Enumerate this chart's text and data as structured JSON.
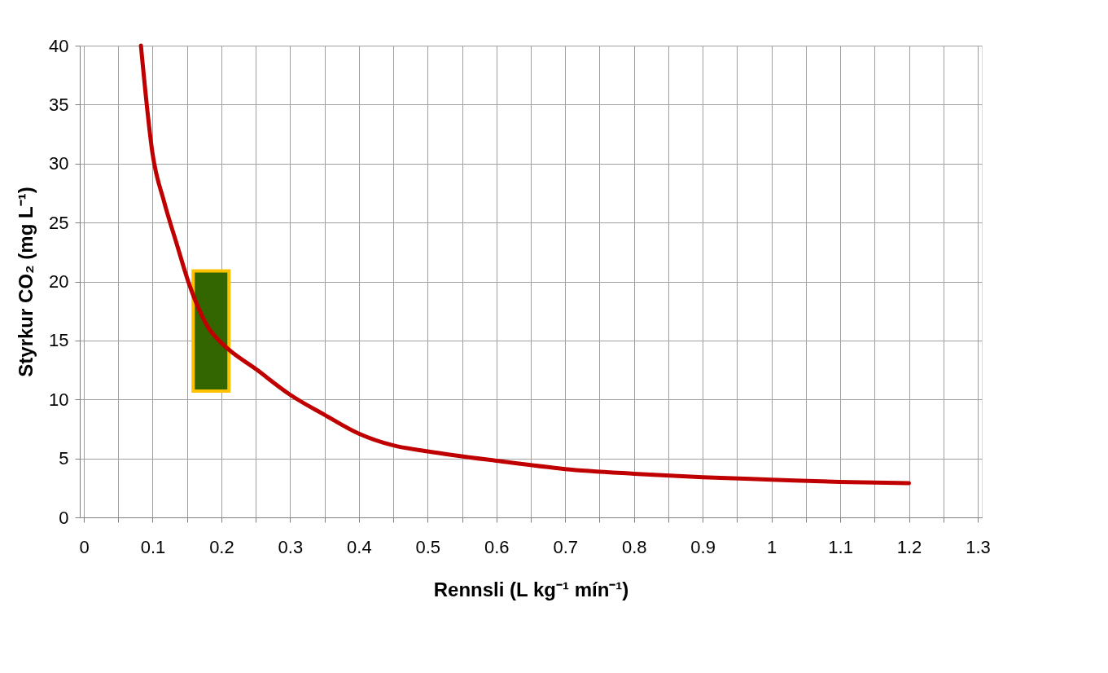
{
  "chart_data": {
    "type": "line",
    "xlabel": "Rennsli (L kg⁻¹ mín⁻¹)",
    "ylabel": "Styrkur CO₂ (mg L⁻¹)",
    "xlim": [
      0,
      1.3
    ],
    "ylim": [
      0,
      40
    ],
    "xticks": [
      0,
      {
        "value": 0.05,
        "label": null
      },
      0.1,
      {
        "value": 0.15,
        "label": null
      },
      0.2,
      {
        "value": 0.25,
        "label": null
      },
      0.3,
      {
        "value": 0.35,
        "label": null
      },
      0.4,
      {
        "value": 0.45,
        "label": null
      },
      0.5,
      {
        "value": 0.55,
        "label": null
      },
      0.6,
      {
        "value": 0.65,
        "label": null
      },
      0.7,
      {
        "value": 0.75,
        "label": null
      },
      0.8,
      {
        "value": 0.85,
        "label": null
      },
      0.9,
      {
        "value": 0.95,
        "label": null
      },
      1,
      {
        "value": 1.05,
        "label": null
      },
      1.1,
      {
        "value": 1.15,
        "label": null
      },
      1.2,
      {
        "value": 1.25,
        "label": null
      },
      1.3
    ],
    "yticks": [
      0,
      5,
      10,
      15,
      20,
      25,
      30,
      35,
      40
    ],
    "grid": true,
    "marker": "none",
    "line_style": "solid",
    "series": [
      {
        "type": "bar",
        "color": "#336600",
        "x": [
          0.185
        ],
        "base": [
          10.7
        ],
        "values": [
          10.2
        ]
      },
      {
        "color": "#c00000",
        "x": [
          0.083,
          0.1,
          0.117,
          0.135,
          0.153,
          0.182,
          0.2,
          0.252,
          0.3,
          0.35,
          0.4,
          0.45,
          0.5,
          0.6,
          0.7,
          0.8,
          0.9,
          1.0,
          1.1,
          1.2
        ],
        "values": [
          40,
          30.8,
          26.7,
          23.2,
          19.8,
          16,
          14.8,
          12.5,
          10.4,
          8.7,
          7.1,
          6.1,
          5.6,
          4.8,
          4.1,
          3.7,
          3.4,
          3.2,
          3.0,
          2.9
        ]
      }
    ]
  }
}
